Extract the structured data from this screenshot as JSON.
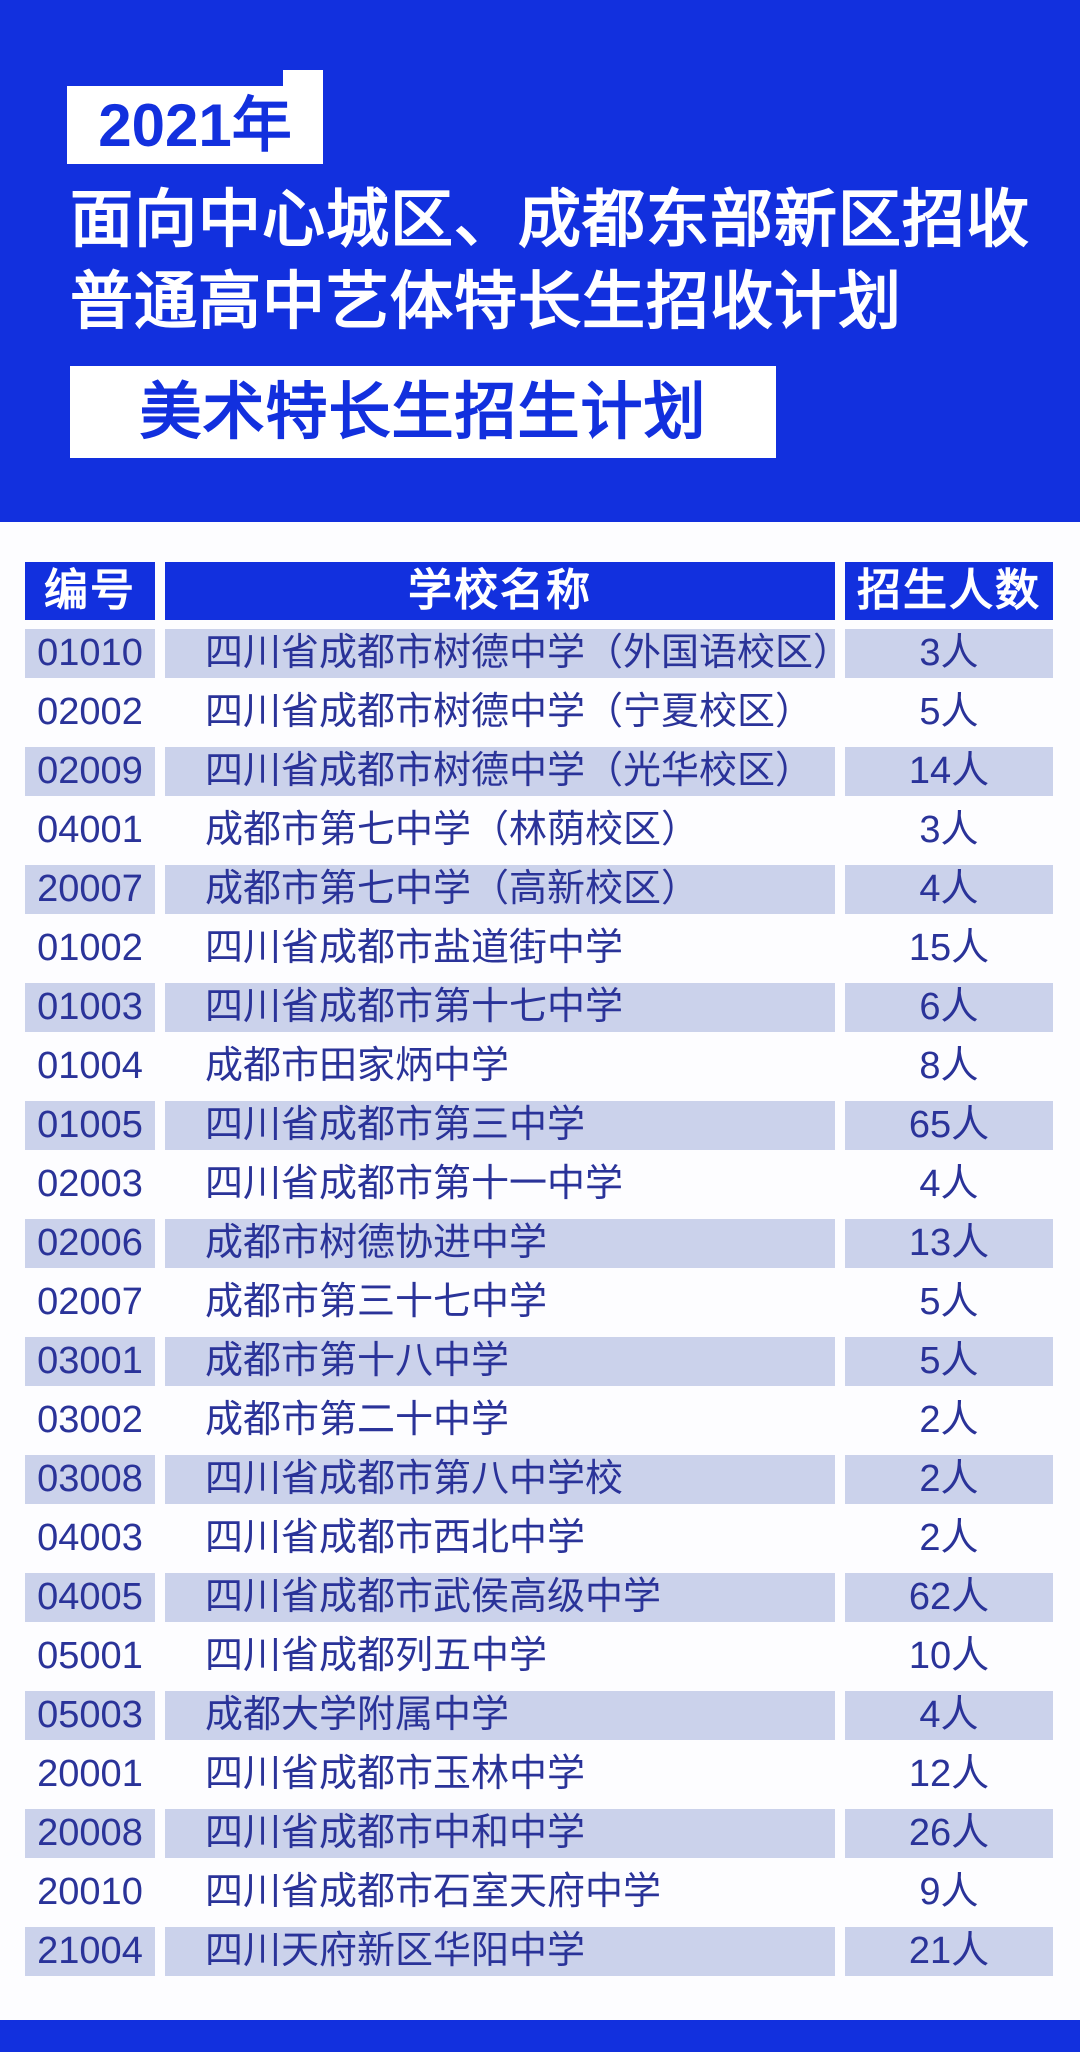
{
  "page": {
    "colors": {
      "accent_blue": "#1230DE",
      "light_row": "#CBD2EB",
      "row_text_blue": "#2A3399",
      "panel_white": "#FDFDFF",
      "badge_text_blue": "#1230DE",
      "title_text_white": "#FFFFFF"
    }
  },
  "header": {
    "year_badge": "2021年",
    "title_line1": "面向中心城区、成都东部新区招收",
    "title_line2": "普通高中艺体特长生招收计划",
    "subtitle_badge": "美术特长生招生计划"
  },
  "table": {
    "columns": [
      "编号",
      "学校名称",
      "招生人数"
    ],
    "rows": [
      {
        "code": "01010",
        "school": "四川省成都市树德中学（外国语校区）",
        "count": "3人"
      },
      {
        "code": "02002",
        "school": "四川省成都市树德中学（宁夏校区）",
        "count": "5人"
      },
      {
        "code": "02009",
        "school": "四川省成都市树德中学（光华校区）",
        "count": "14人"
      },
      {
        "code": "04001",
        "school": "成都市第七中学（林荫校区）",
        "count": "3人"
      },
      {
        "code": "20007",
        "school": "成都市第七中学（高新校区）",
        "count": "4人"
      },
      {
        "code": "01002",
        "school": "四川省成都市盐道街中学",
        "count": "15人"
      },
      {
        "code": "01003",
        "school": "四川省成都市第十七中学",
        "count": "6人"
      },
      {
        "code": "01004",
        "school": "成都市田家炳中学",
        "count": "8人"
      },
      {
        "code": "01005",
        "school": "四川省成都市第三中学",
        "count": "65人"
      },
      {
        "code": "02003",
        "school": "四川省成都市第十一中学",
        "count": "4人"
      },
      {
        "code": "02006",
        "school": "成都市树德协进中学",
        "count": "13人"
      },
      {
        "code": "02007",
        "school": "成都市第三十七中学",
        "count": "5人"
      },
      {
        "code": "03001",
        "school": "成都市第十八中学",
        "count": "5人"
      },
      {
        "code": "03002",
        "school": "成都市第二十中学",
        "count": "2人"
      },
      {
        "code": "03008",
        "school": "四川省成都市第八中学校",
        "count": "2人"
      },
      {
        "code": "04003",
        "school": "四川省成都市西北中学",
        "count": "2人"
      },
      {
        "code": "04005",
        "school": "四川省成都市武侯高级中学",
        "count": "62人"
      },
      {
        "code": "05001",
        "school": "四川省成都列五中学",
        "count": "10人"
      },
      {
        "code": "05003",
        "school": "成都大学附属中学",
        "count": "4人"
      },
      {
        "code": "20001",
        "school": "四川省成都市玉林中学",
        "count": "12人"
      },
      {
        "code": "20008",
        "school": "四川省成都市中和中学",
        "count": "26人"
      },
      {
        "code": "20010",
        "school": "四川省成都市石室天府中学",
        "count": "9人"
      },
      {
        "code": "21004",
        "school": "四川天府新区华阳中学",
        "count": "21人"
      }
    ]
  }
}
